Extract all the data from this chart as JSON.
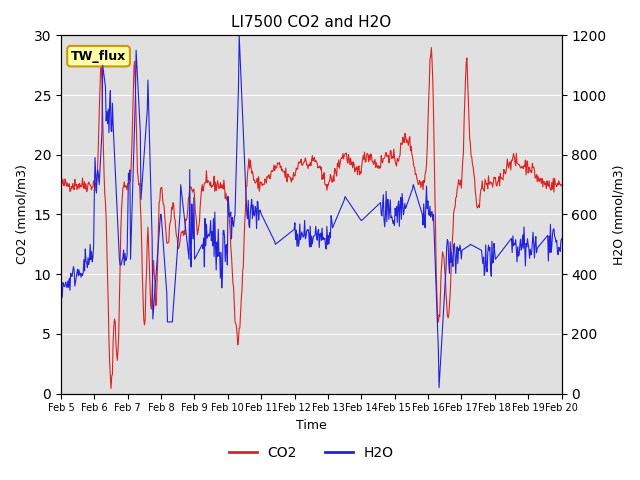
{
  "title": "LI7500 CO2 and H2O",
  "xlabel": "Time",
  "ylabel_left": "CO2 (mmol/m3)",
  "ylabel_right": "H2O (mmol/m3)",
  "co2_color": "#dd2222",
  "h2o_color": "#2222dd",
  "background_color": "#e0e0e0",
  "fig_background": "#ffffff",
  "ylim_left": [
    0,
    30
  ],
  "ylim_right": [
    0,
    1200
  ],
  "xtick_labels": [
    "Feb 5",
    "Feb 6",
    "Feb 7",
    "Feb 8",
    "Feb 9",
    "Feb 10",
    "Feb 11",
    "Feb 12",
    "Feb 13",
    "Feb 14",
    "Feb 15",
    "Feb 16",
    "Feb 17",
    "Feb 18",
    "Feb 19",
    "Feb 20"
  ],
  "annotation_text": "TW_flux",
  "annotation_color": "#ffffaa",
  "annotation_edge": "#cc9900",
  "legend_co2": "CO2",
  "legend_h2o": "H2O"
}
